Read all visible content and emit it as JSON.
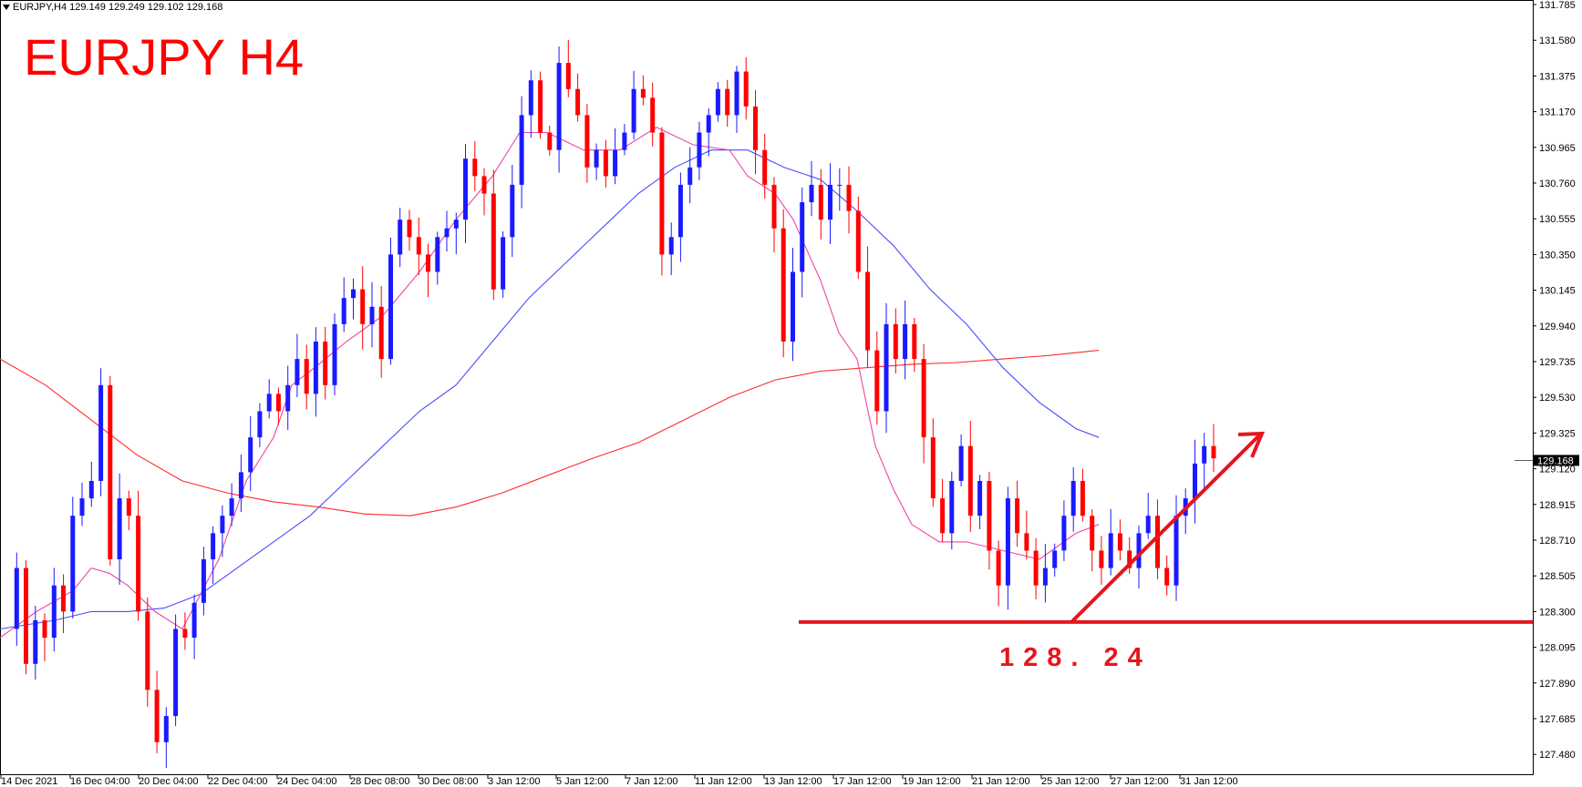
{
  "header": {
    "symbol_info": "EURJPY,H4  129.149 129.249 129.102 129.168"
  },
  "title_overlay": "EURJPY H4",
  "support_label": "128. 24",
  "colors": {
    "bull": "#1a1aff",
    "bear": "#ff0000",
    "ma_fast": "#ee44aa",
    "ma_mid": "#4a4aff",
    "ma_slow": "#ff2a2a",
    "annotation": "#e8141c"
  },
  "chart_data": {
    "type": "candlestick",
    "title": "",
    "ylim": [
      127.3,
      131.9
    ],
    "y_ticks": [
      "131.785",
      "131.580",
      "131.375",
      "131.170",
      "130.965",
      "130.760",
      "130.555",
      "130.350",
      "130.145",
      "129.940",
      "129.735",
      "129.530",
      "129.325",
      "129.120",
      "128.915",
      "128.710",
      "128.505",
      "128.300",
      "128.095",
      "127.890",
      "127.685",
      "127.480"
    ],
    "x_ticks": [
      "14 Dec 2021",
      "16 Dec 04:00",
      "20 Dec 04:00",
      "22 Dec 04:00",
      "24 Dec 04:00",
      "28 Dec 08:00",
      "30 Dec 08:00",
      "3 Jan 12:00",
      "5 Jan 12:00",
      "7 Jan 12:00",
      "11 Jan 12:00",
      "13 Jan 12:00",
      "17 Jan 12:00",
      "19 Jan 12:00",
      "21 Jan 12:00",
      "25 Jan 12:00",
      "27 Jan 12:00",
      "31 Jan 12:00"
    ],
    "current_price": "129.168",
    "support_level": 128.24,
    "close_path": [
      128.2,
      128.55,
      128.0,
      128.25,
      128.15,
      128.45,
      128.3,
      128.85,
      128.95,
      129.05,
      129.6,
      128.6,
      128.95,
      128.85,
      128.3,
      127.85,
      127.55,
      127.7,
      128.2,
      128.15,
      128.35,
      128.6,
      128.75,
      128.85,
      128.95,
      129.1,
      129.3,
      129.45,
      129.55,
      129.45,
      129.6,
      129.75,
      129.55,
      129.85,
      129.6,
      129.95,
      130.1,
      130.15,
      129.95,
      130.05,
      129.75,
      130.35,
      130.55,
      130.45,
      130.35,
      130.25,
      130.45,
      130.5,
      130.55,
      130.9,
      130.8,
      130.7,
      130.15,
      130.45,
      130.75,
      131.15,
      131.35,
      131.05,
      130.95,
      131.45,
      131.3,
      131.15,
      130.85,
      130.95,
      130.8,
      130.95,
      131.05,
      131.3,
      131.25,
      131.05,
      130.35,
      130.45,
      130.75,
      130.85,
      131.05,
      131.15,
      131.3,
      131.15,
      131.4,
      131.2,
      130.95,
      130.75,
      130.5,
      129.85,
      130.25,
      130.65,
      130.75,
      130.55,
      130.75,
      130.75,
      130.6,
      130.25,
      129.8,
      129.45,
      129.95,
      129.75,
      129.95,
      129.75,
      129.3,
      128.95,
      128.75,
      129.05,
      129.25,
      128.85,
      129.05,
      128.65,
      128.45,
      128.95,
      128.75,
      128.65,
      128.45,
      128.55,
      128.65,
      128.85,
      129.05,
      128.85,
      128.65,
      128.55,
      128.75,
      128.65,
      128.55,
      128.75,
      128.85,
      128.55,
      128.45,
      128.85,
      128.95,
      129.15,
      129.25,
      129.18
    ],
    "sma_fast": [
      [
        0,
        128.15
      ],
      [
        40,
        128.3
      ],
      [
        80,
        128.42
      ],
      [
        100,
        128.55
      ],
      [
        120,
        128.52
      ],
      [
        140,
        128.45
      ],
      [
        170,
        128.3
      ],
      [
        200,
        128.2
      ],
      [
        240,
        128.6
      ],
      [
        270,
        129.05
      ],
      [
        300,
        129.3
      ],
      [
        320,
        129.6
      ],
      [
        345,
        129.7
      ],
      [
        380,
        129.85
      ],
      [
        420,
        130.0
      ],
      [
        460,
        130.25
      ],
      [
        500,
        130.55
      ],
      [
        540,
        130.8
      ],
      [
        570,
        131.05
      ],
      [
        600,
        131.05
      ],
      [
        640,
        130.95
      ],
      [
        680,
        130.95
      ],
      [
        720,
        131.08
      ],
      [
        760,
        130.98
      ],
      [
        800,
        130.95
      ],
      [
        820,
        130.8
      ],
      [
        850,
        130.7
      ],
      [
        870,
        130.55
      ],
      [
        900,
        130.2
      ],
      [
        920,
        129.9
      ],
      [
        940,
        129.75
      ],
      [
        960,
        129.25
      ],
      [
        980,
        129.0
      ],
      [
        1000,
        128.8
      ],
      [
        1030,
        128.7
      ],
      [
        1060,
        128.7
      ],
      [
        1100,
        128.65
      ],
      [
        1140,
        128.6
      ],
      [
        1180,
        128.75
      ],
      [
        1205,
        128.8
      ]
    ],
    "sma_mid": [
      [
        0,
        128.2
      ],
      [
        60,
        128.25
      ],
      [
        100,
        128.3
      ],
      [
        140,
        128.3
      ],
      [
        180,
        128.32
      ],
      [
        220,
        128.4
      ],
      [
        260,
        128.55
      ],
      [
        300,
        128.7
      ],
      [
        340,
        128.85
      ],
      [
        380,
        129.05
      ],
      [
        420,
        129.25
      ],
      [
        460,
        129.45
      ],
      [
        500,
        129.6
      ],
      [
        540,
        129.85
      ],
      [
        580,
        130.1
      ],
      [
        620,
        130.3
      ],
      [
        660,
        130.5
      ],
      [
        700,
        130.7
      ],
      [
        740,
        130.85
      ],
      [
        780,
        130.95
      ],
      [
        820,
        130.95
      ],
      [
        860,
        130.85
      ],
      [
        900,
        130.78
      ],
      [
        940,
        130.6
      ],
      [
        980,
        130.4
      ],
      [
        1020,
        130.15
      ],
      [
        1060,
        129.95
      ],
      [
        1100,
        129.7
      ],
      [
        1140,
        129.5
      ],
      [
        1180,
        129.35
      ],
      [
        1205,
        129.3
      ]
    ],
    "sma_slow": [
      [
        0,
        129.75
      ],
      [
        50,
        129.6
      ],
      [
        100,
        129.4
      ],
      [
        150,
        129.2
      ],
      [
        200,
        129.05
      ],
      [
        250,
        128.98
      ],
      [
        300,
        128.93
      ],
      [
        350,
        128.9
      ],
      [
        400,
        128.86
      ],
      [
        450,
        128.85
      ],
      [
        500,
        128.9
      ],
      [
        550,
        128.98
      ],
      [
        600,
        129.08
      ],
      [
        650,
        129.18
      ],
      [
        700,
        129.27
      ],
      [
        750,
        129.4
      ],
      [
        800,
        129.53
      ],
      [
        850,
        129.63
      ],
      [
        900,
        129.68
      ],
      [
        950,
        129.7
      ],
      [
        1000,
        129.72
      ],
      [
        1050,
        129.73
      ],
      [
        1100,
        129.75
      ],
      [
        1150,
        129.77
      ],
      [
        1205,
        129.8
      ]
    ]
  }
}
